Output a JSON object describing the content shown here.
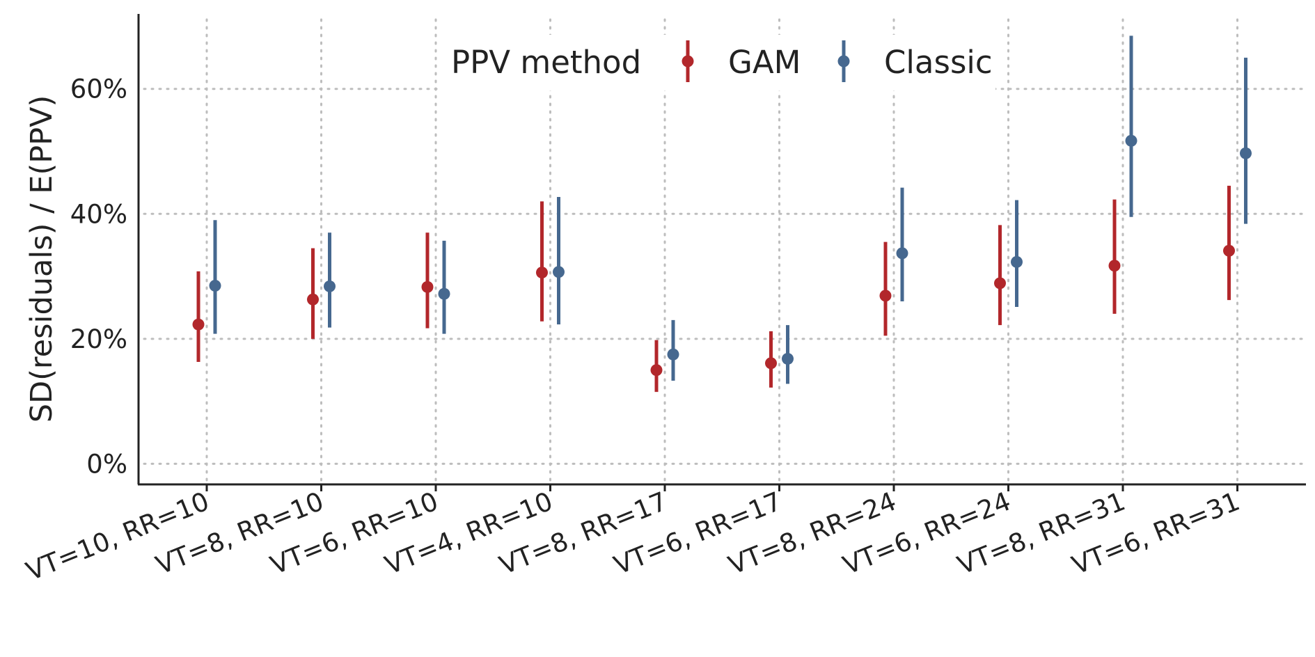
{
  "chart_data": {
    "type": "scatter",
    "title": "",
    "xlabel": "",
    "ylabel": "SD(residuals) / E(PPV)",
    "categories": [
      "VT=10, RR=10",
      "VT=8, RR=10",
      "VT=6, RR=10",
      "VT=4, RR=10",
      "VT=8, RR=17",
      "VT=6, RR=17",
      "VT=8, RR=24",
      "VT=6, RR=24",
      "VT=8, RR=31",
      "VT=6, RR=31"
    ],
    "ylim": [
      -0.033,
      0.72
    ],
    "yticks": [
      0,
      0.2,
      0.4,
      0.6
    ],
    "ytick_labels": [
      "0%",
      "20%",
      "40%",
      "60%"
    ],
    "grid": true,
    "legend": {
      "title": "PPV method",
      "position": "top"
    },
    "series": [
      {
        "name": "GAM",
        "color": "#b2272b",
        "values": [
          0.223,
          0.263,
          0.283,
          0.306,
          0.15,
          0.161,
          0.269,
          0.289,
          0.317,
          0.341
        ],
        "lower": [
          0.163,
          0.2,
          0.217,
          0.228,
          0.115,
          0.122,
          0.205,
          0.222,
          0.24,
          0.262
        ],
        "upper": [
          0.308,
          0.345,
          0.37,
          0.42,
          0.198,
          0.212,
          0.355,
          0.382,
          0.423,
          0.445
        ]
      },
      {
        "name": "Classic",
        "color": "#46688f",
        "values": [
          0.285,
          0.284,
          0.272,
          0.307,
          0.175,
          0.168,
          0.337,
          0.323,
          0.517,
          0.497
        ],
        "lower": [
          0.208,
          0.218,
          0.208,
          0.223,
          0.133,
          0.128,
          0.26,
          0.251,
          0.395,
          0.384
        ],
        "upper": [
          0.39,
          0.37,
          0.357,
          0.427,
          0.23,
          0.222,
          0.442,
          0.422,
          0.685,
          0.65
        ]
      }
    ]
  }
}
